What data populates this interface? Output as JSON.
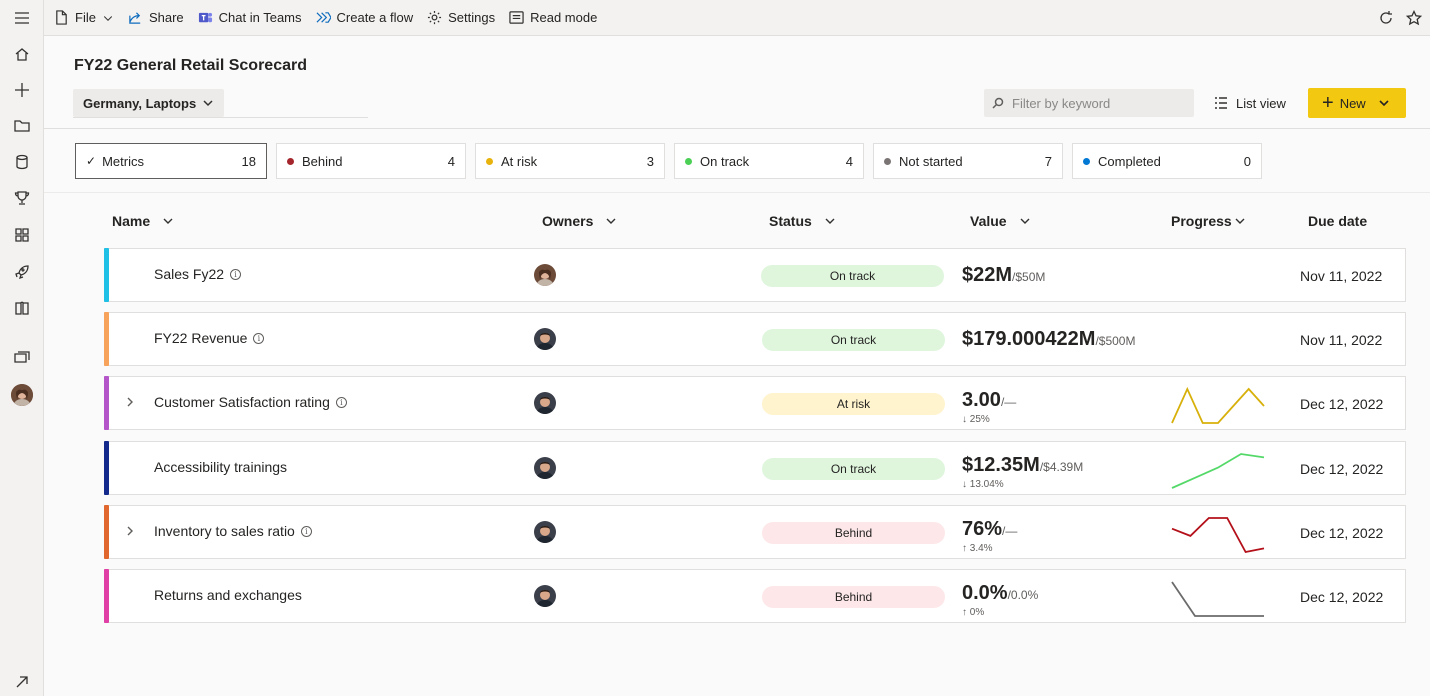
{
  "toolbar": {
    "file": "File",
    "share": "Share",
    "chat": "Chat in Teams",
    "flow": "Create a flow",
    "settings": "Settings",
    "read_mode": "Read mode"
  },
  "rail_icons": [
    "menu-icon",
    "home-icon",
    "plus-icon",
    "folder-icon",
    "database-icon",
    "trophy-icon",
    "apps-icon",
    "rocket-icon",
    "book-icon",
    "workspaces-icon",
    "user-avatar",
    "expand-icon"
  ],
  "header": {
    "title": "FY22 General Retail Scorecard",
    "filter": "Germany, Laptops",
    "search_placeholder": "Filter by keyword",
    "list_view": "List view",
    "new_label": "New"
  },
  "cards": [
    {
      "label": "Metrics",
      "count": "18",
      "color": "",
      "selected": true
    },
    {
      "label": "Behind",
      "count": "4",
      "color": "#a4262c"
    },
    {
      "label": "At risk",
      "count": "3",
      "color": "#e8b30d"
    },
    {
      "label": "On track",
      "count": "4",
      "color": "#4bd055"
    },
    {
      "label": "Not started",
      "count": "7",
      "color": "#7a7574"
    },
    {
      "label": "Completed",
      "count": "0",
      "color": "#0078d4"
    }
  ],
  "columns": {
    "name": "Name",
    "owners": "Owners",
    "status": "Status",
    "value": "Value",
    "progress": "Progress",
    "due": "Due date"
  },
  "rows": [
    {
      "name": "Sales Fy22",
      "info": true,
      "expand": false,
      "bar_color": "#1ec0e6",
      "status": "On track",
      "status_color": "#dff6dd",
      "value": "$22M",
      "target": "/$50M",
      "change": "",
      "due": "Nov 11, 2022",
      "spark_color": "",
      "spark": []
    },
    {
      "name": "FY22 Revenue",
      "info": true,
      "expand": false,
      "bar_color": "#f7a35c",
      "status": "On track",
      "status_color": "#dff6dd",
      "value": "$179.000422M",
      "target": "/$500M",
      "change": "",
      "due": "Nov 11, 2022",
      "spark_color": "",
      "spark": []
    },
    {
      "name": "Customer Satisfaction rating",
      "info": true,
      "expand": true,
      "bar_color": "#b455c9",
      "status": "At risk",
      "status_color": "#fff4ce",
      "value": "3.00",
      "target": "/—",
      "change": "↓ 25%",
      "due": "Dec 12, 2022",
      "spark_color": "#d7b00a",
      "spark": [
        1,
        3,
        1,
        1,
        2,
        3,
        2
      ]
    },
    {
      "name": "Accessibility trainings",
      "info": false,
      "expand": false,
      "bar_color": "#14298c",
      "status": "On track",
      "status_color": "#dff6dd",
      "value": "$12.35M",
      "target": "/$4.39M",
      "change": "↓ 13.04%",
      "due": "Dec 12, 2022",
      "spark_color": "#54d969",
      "spark": [
        1,
        1.6,
        2.2,
        3,
        2.8
      ]
    },
    {
      "name": "Inventory to sales ratio",
      "info": true,
      "expand": true,
      "bar_color": "#e0682e",
      "status": "Behind",
      "status_color": "#fde7e9",
      "value": "76%",
      "target": "/—",
      "change": "↑ 3.4%",
      "due": "Dec 12, 2022",
      "spark_color": "#b4101a",
      "spark": [
        2.2,
        1.8,
        2.8,
        2.8,
        0.9,
        1.1
      ]
    },
    {
      "name": "Returns and exchanges",
      "info": false,
      "expand": false,
      "bar_color": "#e040a5",
      "status": "Behind",
      "status_color": "#fde7e9",
      "value": "0.0%",
      "target": "/0.0%",
      "change": "↑ 0%",
      "due": "Dec 12, 2022",
      "spark_color": "#6b6b6b",
      "spark": [
        3,
        0,
        0,
        0,
        0
      ]
    }
  ]
}
